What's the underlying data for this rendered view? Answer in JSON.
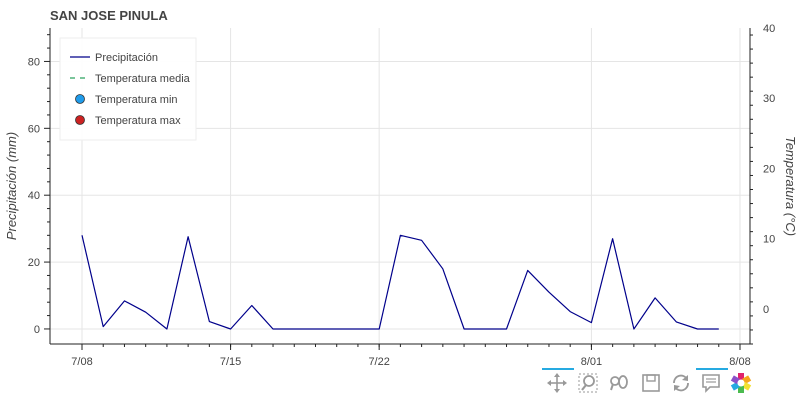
{
  "chart_data": {
    "type": "line",
    "title": "SAN JOSE PINULA",
    "ylabel": "Precipitación (mm)",
    "y2label": "Temperatura (°C)",
    "ylim": [
      -4.5,
      90
    ],
    "y2lim": [
      -5,
      40
    ],
    "xlim": [
      "2024-07-08",
      "2024-08-08"
    ],
    "yticks": [
      0,
      20,
      40,
      60,
      80
    ],
    "y2ticks": [
      0,
      10,
      20,
      30,
      40
    ],
    "xticks": [
      {
        "date": "2024-07-08",
        "label": "7/08"
      },
      {
        "date": "2024-07-15",
        "label": "7/15"
      },
      {
        "date": "2024-07-22",
        "label": "7/22"
      },
      {
        "date": "2024-08-01",
        "label": "8/01"
      },
      {
        "date": "2024-08-08",
        "label": "8/08"
      }
    ],
    "grid": true,
    "legend_position": "top-left",
    "series": [
      {
        "name": "Precipitación",
        "style": "line",
        "color": "#00008b",
        "x": [
          "2024-07-08",
          "2024-07-09",
          "2024-07-10",
          "2024-07-11",
          "2024-07-12",
          "2024-07-13",
          "2024-07-14",
          "2024-07-15",
          "2024-07-16",
          "2024-07-17",
          "2024-07-18",
          "2024-07-19",
          "2024-07-20",
          "2024-07-21",
          "2024-07-22",
          "2024-07-23",
          "2024-07-24",
          "2024-07-25",
          "2024-07-26",
          "2024-07-27",
          "2024-07-28",
          "2024-07-29",
          "2024-07-30",
          "2024-07-31",
          "2024-08-01",
          "2024-08-02",
          "2024-08-03",
          "2024-08-04",
          "2024-08-05",
          "2024-08-06",
          "2024-08-07"
        ],
        "y": [
          28,
          0.7,
          8.4,
          5,
          0,
          27.6,
          2.2,
          0,
          7,
          0,
          0,
          0,
          0,
          0,
          0,
          28,
          26.5,
          18,
          0,
          0,
          0,
          17.5,
          11,
          5.2,
          1.9,
          27,
          0,
          9.3,
          2.1,
          0,
          0
        ]
      },
      {
        "name": "Temperatura media",
        "style": "dashed-line",
        "color": "#2ca25f"
      },
      {
        "name": "Temperatura min",
        "style": "circle",
        "color": "#1f9bea"
      },
      {
        "name": "Temperatura max",
        "style": "circle",
        "color": "#cc2222"
      }
    ]
  },
  "toolbar": {
    "tools": [
      {
        "name": "pan-tool",
        "icon": "move-arrows-icon",
        "active": true
      },
      {
        "name": "box-zoom-tool",
        "icon": "box-zoom-icon",
        "active": false
      },
      {
        "name": "wheel-zoom-tool",
        "icon": "wheel-zoom-icon",
        "active": false
      },
      {
        "name": "save-tool",
        "icon": "save-icon",
        "active": false
      },
      {
        "name": "reset-tool",
        "icon": "reset-icon",
        "active": false
      },
      {
        "name": "hover-tool",
        "icon": "hover-tooltip-icon",
        "active": true
      },
      {
        "name": "bokeh-logo",
        "icon": "bokeh-logo-icon",
        "active": false
      }
    ]
  }
}
